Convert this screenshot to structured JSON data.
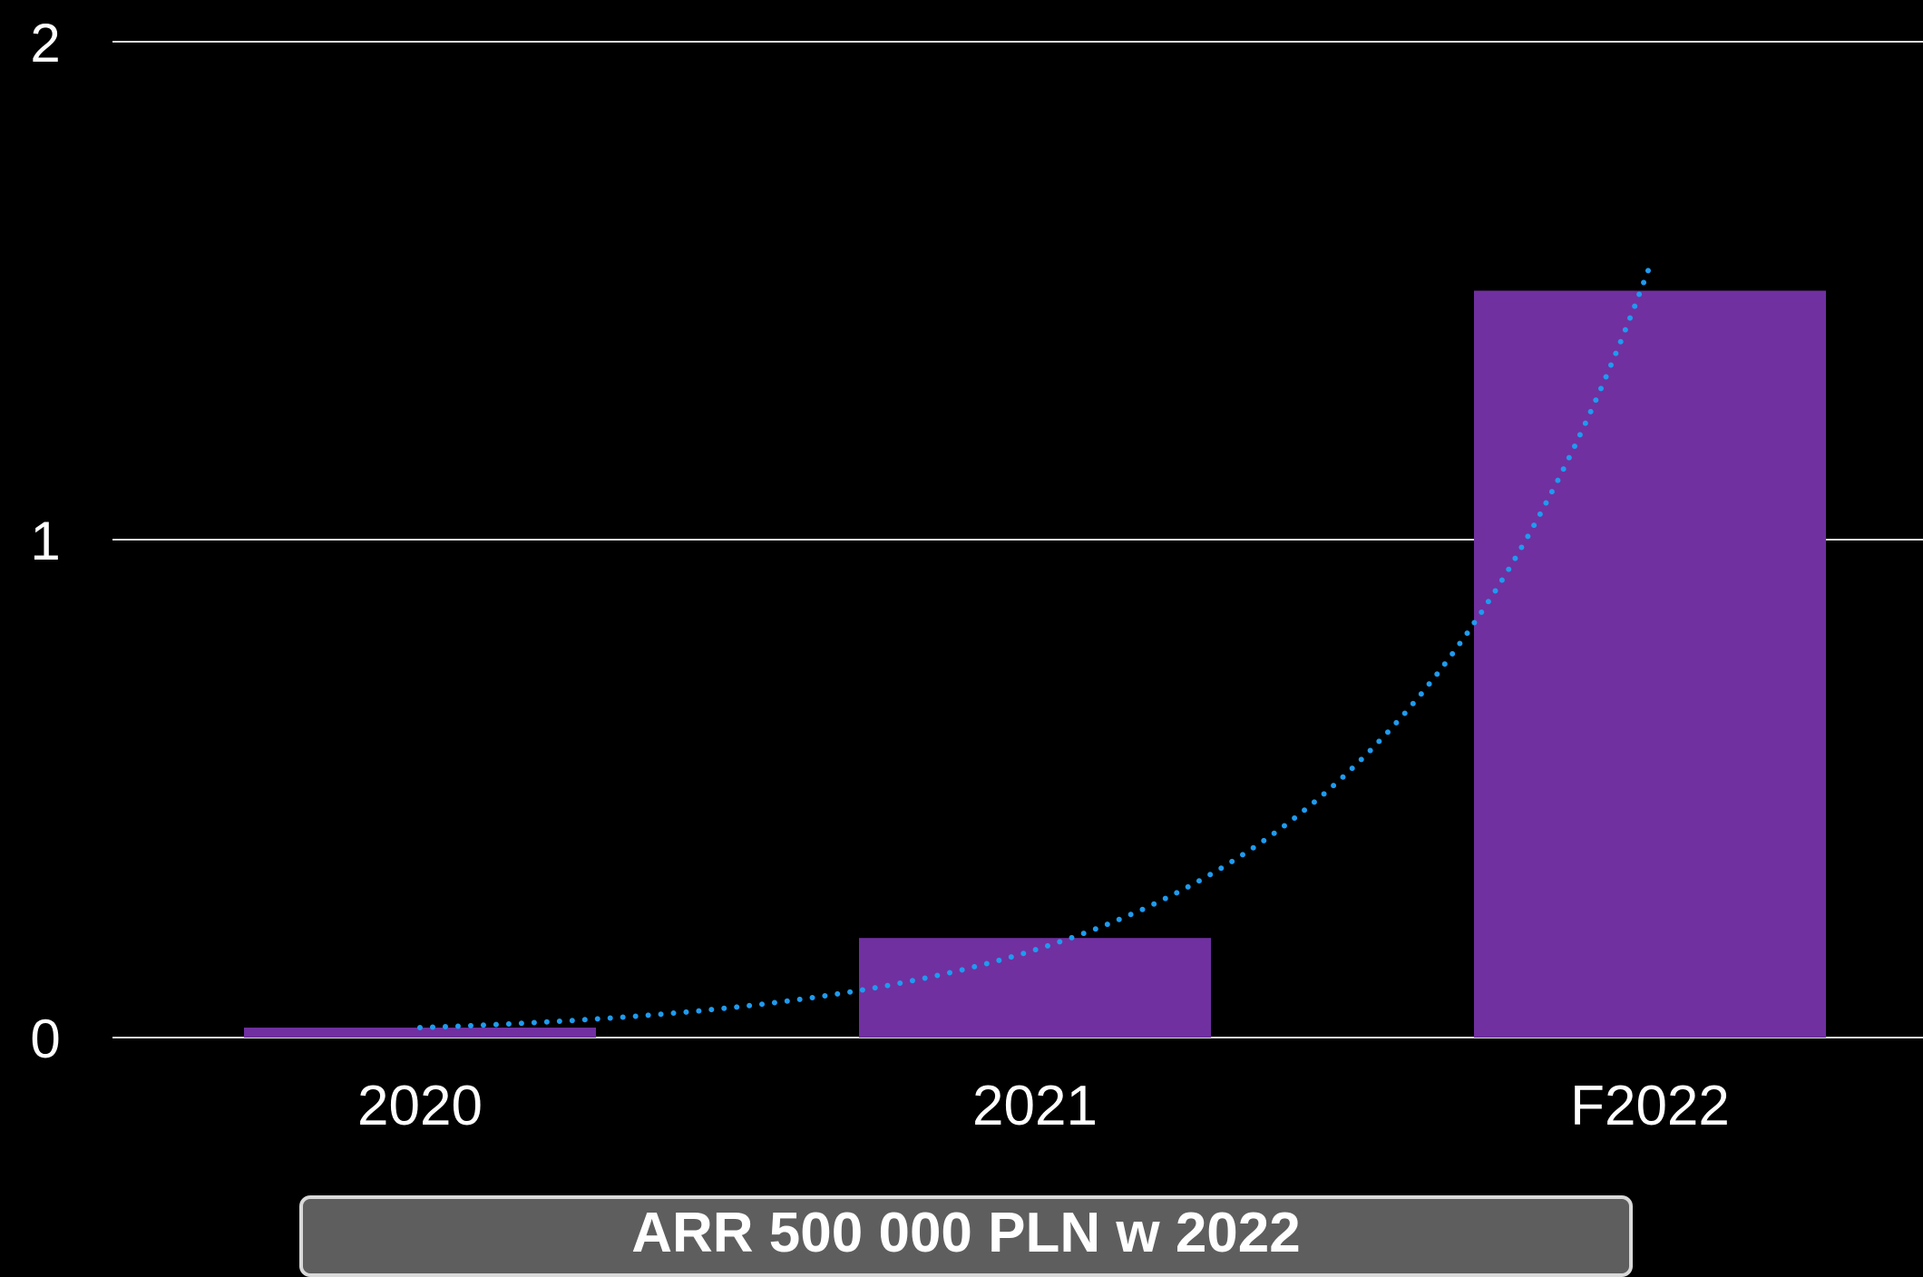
{
  "chart_data": {
    "type": "bar",
    "title": "",
    "categories": [
      "2020",
      "2021",
      "F2022"
    ],
    "series": [
      {
        "values": [
          0.02,
          0.2,
          1.5
        ],
        "color": "#7030a0"
      }
    ],
    "trendline": {
      "type": "exponential",
      "style": "dotted",
      "color": "#1e9bf0",
      "values": [
        0.02,
        0.2,
        1.55
      ]
    },
    "yticks": [
      "0",
      "1",
      "2"
    ],
    "ylim": [
      0,
      2
    ],
    "grid": true,
    "legend": "none",
    "background": "#000000"
  },
  "badge": {
    "text": "ARR 500 000 PLN w 2022"
  }
}
